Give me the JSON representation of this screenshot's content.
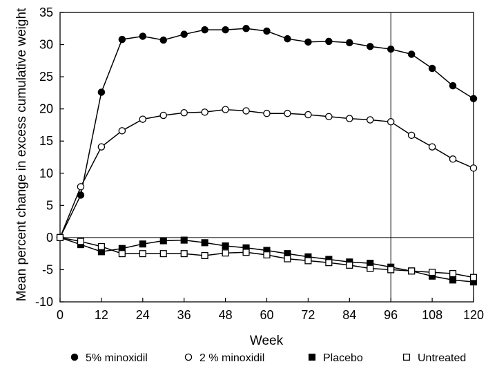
{
  "chart_data": {
    "type": "line",
    "title": "",
    "xlabel": "Week",
    "ylabel": "Mean percent change in excess cumulative weight",
    "xlim": [
      0,
      120
    ],
    "ylim": [
      -10,
      35
    ],
    "xticks": [
      0,
      12,
      24,
      36,
      48,
      60,
      72,
      84,
      96,
      108,
      120
    ],
    "yticks": [
      -10,
      -5,
      0,
      5,
      10,
      15,
      20,
      25,
      30,
      35
    ],
    "xtick_labels": [
      "0",
      "12",
      "24",
      "36",
      "48",
      "60",
      "72",
      "84",
      "96",
      "108",
      "120"
    ],
    "ytick_labels": [
      "-10",
      "-5",
      "0",
      "5",
      "10",
      "15",
      "20",
      "25",
      "30",
      "35"
    ],
    "reference_lines": {
      "x": 96,
      "y": 0
    },
    "grid": false,
    "legend_position": "bottom",
    "x": [
      0,
      6,
      12,
      18,
      24,
      30,
      36,
      42,
      48,
      54,
      60,
      66,
      72,
      78,
      84,
      90,
      96,
      102,
      108,
      114,
      120
    ],
    "series": [
      {
        "name": "5% minoxidil",
        "marker": "filled-circle",
        "values": [
          0,
          6.6,
          22.6,
          30.8,
          31.3,
          30.7,
          31.6,
          32.3,
          32.3,
          32.5,
          32.1,
          30.9,
          30.4,
          30.5,
          30.3,
          29.7,
          29.3,
          28.5,
          26.3,
          23.6,
          21.6
        ]
      },
      {
        "name": "2 % minoxidil",
        "marker": "open-circle",
        "values": [
          0,
          7.9,
          14.1,
          16.6,
          18.4,
          19.0,
          19.4,
          19.5,
          19.9,
          19.7,
          19.3,
          19.3,
          19.1,
          18.8,
          18.5,
          18.3,
          18.0,
          15.9,
          14.1,
          12.2,
          10.8
        ]
      },
      {
        "name": "Placebo",
        "marker": "filled-square",
        "values": [
          0,
          -1.1,
          -2.2,
          -1.7,
          -1.0,
          -0.5,
          -0.4,
          -0.8,
          -1.3,
          -1.6,
          -2.0,
          -2.5,
          -3.0,
          -3.4,
          -3.8,
          -4.0,
          -4.6,
          -5.2,
          -6.0,
          -6.6,
          -6.9
        ]
      },
      {
        "name": "Untreated",
        "marker": "open-square",
        "values": [
          0,
          -0.6,
          -1.4,
          -2.5,
          -2.5,
          -2.5,
          -2.5,
          -2.8,
          -2.4,
          -2.3,
          -2.7,
          -3.3,
          -3.6,
          -3.9,
          -4.3,
          -4.8,
          -5.0,
          -5.2,
          -5.4,
          -5.6,
          -6.2
        ]
      }
    ]
  }
}
